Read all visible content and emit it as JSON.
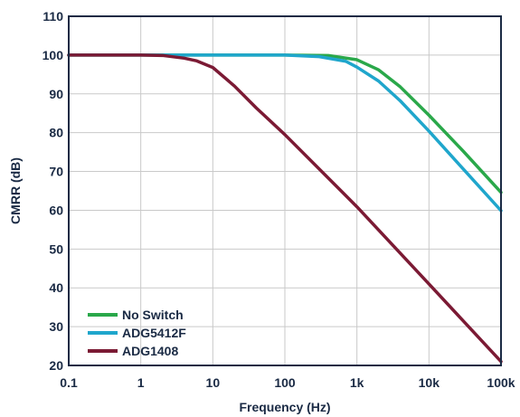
{
  "chart_data": {
    "type": "line",
    "xlabel": "Frequency (Hz)",
    "ylabel": "CMRR (dB)",
    "xscale": "log",
    "xlim": [
      0.1,
      100000
    ],
    "ylim": [
      20,
      110
    ],
    "x_ticks": [
      {
        "value": 0.1,
        "label": "0.1"
      },
      {
        "value": 1,
        "label": "1"
      },
      {
        "value": 10,
        "label": "10"
      },
      {
        "value": 100,
        "label": "100"
      },
      {
        "value": 1000,
        "label": "1k"
      },
      {
        "value": 10000,
        "label": "10k"
      },
      {
        "value": 100000,
        "label": "100k"
      }
    ],
    "y_ticks": [
      20,
      30,
      40,
      50,
      60,
      70,
      80,
      90,
      100,
      110
    ],
    "grid": true,
    "legend_position": "bottom-left",
    "series": [
      {
        "name": "No Switch",
        "color": "#2aa84a",
        "points": [
          [
            0.1,
            100
          ],
          [
            100,
            100
          ],
          [
            400,
            99.9
          ],
          [
            1000,
            98.8
          ],
          [
            2000,
            96.2
          ],
          [
            4000,
            91.8
          ],
          [
            10000,
            84.5
          ],
          [
            30000,
            75.2
          ],
          [
            100000,
            64.6
          ]
        ]
      },
      {
        "name": "ADG5412F",
        "color": "#1fa6cc",
        "points": [
          [
            0.1,
            100
          ],
          [
            100,
            100
          ],
          [
            300,
            99.6
          ],
          [
            700,
            98.4
          ],
          [
            1000,
            96.9
          ],
          [
            2000,
            93.3
          ],
          [
            4000,
            88.2
          ],
          [
            10000,
            80.4
          ],
          [
            30000,
            70.6
          ],
          [
            100000,
            59.9
          ]
        ]
      },
      {
        "name": "ADG1408",
        "color": "#7b1a34",
        "points": [
          [
            0.1,
            100
          ],
          [
            1,
            100
          ],
          [
            2,
            99.9
          ],
          [
            4,
            99.2
          ],
          [
            6,
            98.5
          ],
          [
            10,
            96.8
          ],
          [
            20,
            92
          ],
          [
            40,
            86.4
          ],
          [
            100,
            79.5
          ],
          [
            1000,
            60.9
          ],
          [
            10000,
            41
          ],
          [
            100000,
            21
          ]
        ]
      }
    ]
  }
}
